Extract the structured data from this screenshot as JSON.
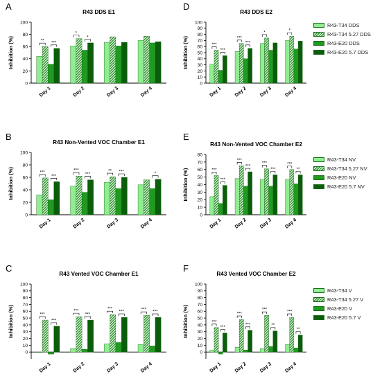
{
  "colors": {
    "s0": "#90ee90",
    "s1": "#2e8b2e",
    "s2": "#1f9b1f",
    "s3": "#0b5d0b",
    "axis": "#000000"
  },
  "chart_data": [
    {
      "panel": "A",
      "type": "bar",
      "title": "R43 DDS E1",
      "ylabel": "Inhibition (%)",
      "xlabel": "",
      "ylim": [
        0,
        100
      ],
      "yticks": [
        0,
        20,
        40,
        60,
        80,
        100
      ],
      "categories": [
        "Day 1",
        "Day 2",
        "Day 3",
        "Day 4"
      ],
      "series": [
        {
          "values": [
            44,
            61,
            67,
            70
          ]
        },
        {
          "values": [
            60,
            73,
            76,
            77
          ]
        },
        {
          "values": [
            31,
            54,
            61,
            66
          ]
        },
        {
          "values": [
            57,
            66,
            67,
            68
          ]
        }
      ],
      "significance": [
        {
          "day": 0,
          "from": 0,
          "to": 1,
          "label": "**"
        },
        {
          "day": 0,
          "from": 2,
          "to": 3,
          "label": "***"
        },
        {
          "day": 1,
          "from": 0,
          "to": 1,
          "label": "*"
        },
        {
          "day": 1,
          "from": 2,
          "to": 3,
          "label": "*"
        }
      ]
    },
    {
      "panel": "D",
      "type": "bar",
      "title": "R43 DDS E2",
      "ylabel": "Inhibition (%)",
      "xlabel": "",
      "ylim": [
        0,
        100
      ],
      "yticks": [
        0,
        10,
        20,
        30,
        40,
        50,
        60,
        70,
        80,
        90,
        100
      ],
      "categories": [
        "Day 1",
        "Day 2",
        "Day 3",
        "Day 4"
      ],
      "series": [
        {
          "name": "R43-T34 DDS",
          "values": [
            31,
            52,
            65,
            70
          ]
        },
        {
          "name": "R43-T34 5.27 DDS",
          "values": [
            54,
            65,
            74,
            77
          ]
        },
        {
          "name": "R43-E20 DDS",
          "values": [
            21,
            40,
            54,
            56
          ]
        },
        {
          "name": "R43-E20 5.7 DDS",
          "values": [
            45,
            57,
            66,
            69
          ]
        }
      ],
      "significance": [
        {
          "day": 0,
          "from": 0,
          "to": 1,
          "label": "***"
        },
        {
          "day": 0,
          "from": 2,
          "to": 3,
          "label": "***"
        },
        {
          "day": 1,
          "from": 0,
          "to": 1,
          "label": "***"
        },
        {
          "day": 1,
          "from": 2,
          "to": 3,
          "label": "***"
        },
        {
          "day": 2,
          "from": 0,
          "to": 1,
          "label": "*"
        },
        {
          "day": 3,
          "from": 0,
          "to": 1,
          "label": "*"
        }
      ]
    },
    {
      "panel": "B",
      "type": "bar",
      "title": "R43 Non-Vented VOC Chamber E1",
      "ylabel": "Inhibition (%)",
      "xlabel": "",
      "ylim": [
        0,
        100
      ],
      "yticks": [
        0,
        20,
        40,
        60,
        80,
        100
      ],
      "categories": [
        "Day 1",
        "Day 2",
        "Day 3",
        "Day 4"
      ],
      "series": [
        {
          "values": [
            32,
            46,
            52,
            48
          ]
        },
        {
          "values": [
            59,
            62,
            61,
            56
          ]
        },
        {
          "values": [
            24,
            36,
            42,
            42
          ]
        },
        {
          "values": [
            53,
            56,
            60,
            57
          ]
        }
      ],
      "significance": [
        {
          "day": 0,
          "from": 0,
          "to": 1,
          "label": "***"
        },
        {
          "day": 0,
          "from": 2,
          "to": 3,
          "label": "***"
        },
        {
          "day": 1,
          "from": 0,
          "to": 1,
          "label": "***"
        },
        {
          "day": 1,
          "from": 2,
          "to": 3,
          "label": "***"
        },
        {
          "day": 2,
          "from": 0,
          "to": 1,
          "label": "**"
        },
        {
          "day": 2,
          "from": 2,
          "to": 3,
          "label": "***"
        },
        {
          "day": 3,
          "from": 2,
          "to": 3,
          "label": "*"
        }
      ]
    },
    {
      "panel": "E",
      "type": "bar",
      "title": "R43 Non-Vented VOC Chamber E2",
      "ylabel": "Inhibition (%)",
      "xlabel": "",
      "ylim": [
        0,
        80
      ],
      "yticks": [
        0,
        10,
        20,
        30,
        40,
        50,
        60,
        70,
        80
      ],
      "categories": [
        "Day 1",
        "Day 2",
        "Day 3",
        "Day 4"
      ],
      "series": [
        {
          "name": "R43-T34 NV",
          "values": [
            24,
            48,
            47,
            47
          ]
        },
        {
          "name": "R43-T34 5.27 NV",
          "values": [
            52,
            65,
            61,
            60
          ]
        },
        {
          "name": "R43-E20 NV",
          "values": [
            15,
            38,
            38,
            41
          ]
        },
        {
          "name": "R43-E20 5.7 NV",
          "values": [
            39,
            57,
            53,
            53
          ]
        }
      ],
      "significance": [
        {
          "day": 0,
          "from": 0,
          "to": 1,
          "label": "***"
        },
        {
          "day": 0,
          "from": 2,
          "to": 3,
          "label": "***"
        },
        {
          "day": 1,
          "from": 0,
          "to": 1,
          "label": "***"
        },
        {
          "day": 1,
          "from": 2,
          "to": 3,
          "label": "***"
        },
        {
          "day": 2,
          "from": 0,
          "to": 1,
          "label": "***"
        },
        {
          "day": 2,
          "from": 2,
          "to": 3,
          "label": "***"
        },
        {
          "day": 3,
          "from": 0,
          "to": 1,
          "label": "***"
        },
        {
          "day": 3,
          "from": 2,
          "to": 3,
          "label": "**"
        }
      ]
    },
    {
      "panel": "C",
      "type": "bar",
      "title": "R43 Vented VOC Chamber E1",
      "ylabel": "Inhibition (%)",
      "xlabel": "",
      "ylim": [
        -10,
        100
      ],
      "yticks": [
        0,
        10,
        20,
        30,
        40,
        50,
        60,
        70,
        80,
        90,
        100
      ],
      "categories": [
        "Day 1",
        "Day 2",
        "Day 3",
        "Day 4"
      ],
      "series": [
        {
          "values": [
            0,
            5,
            12,
            11
          ]
        },
        {
          "values": [
            47,
            52,
            55,
            54
          ]
        },
        {
          "values": [
            -3,
            4,
            14,
            9
          ]
        },
        {
          "values": [
            38,
            47,
            51,
            51
          ]
        }
      ],
      "significance": [
        {
          "day": 0,
          "from": 0,
          "to": 1,
          "label": "***"
        },
        {
          "day": 0,
          "from": 2,
          "to": 3,
          "label": "***"
        },
        {
          "day": 1,
          "from": 0,
          "to": 1,
          "label": "***"
        },
        {
          "day": 1,
          "from": 2,
          "to": 3,
          "label": "***"
        },
        {
          "day": 2,
          "from": 0,
          "to": 1,
          "label": "***"
        },
        {
          "day": 2,
          "from": 2,
          "to": 3,
          "label": "***"
        },
        {
          "day": 3,
          "from": 0,
          "to": 1,
          "label": "***"
        },
        {
          "day": 3,
          "from": 2,
          "to": 3,
          "label": "***"
        }
      ]
    },
    {
      "panel": "F",
      "type": "bar",
      "title": "R43 Vented VOC Chamber E2",
      "ylabel": "Inhibition (%)",
      "xlabel": "",
      "ylim": [
        -10,
        100
      ],
      "yticks": [
        0,
        10,
        20,
        30,
        40,
        50,
        60,
        70,
        80,
        90,
        100
      ],
      "categories": [
        "Day 1",
        "Day 2",
        "Day 3",
        "Day 4"
      ],
      "series": [
        {
          "name": "R43-T34 V",
          "values": [
            3,
            7,
            5,
            11
          ]
        },
        {
          "name": "R43-T34 5.27 V",
          "values": [
            36,
            48,
            54,
            51
          ]
        },
        {
          "name": "R43-E20 V",
          "values": [
            -3,
            3,
            8,
            6
          ]
        },
        {
          "name": "R43-E20 5.7 V",
          "values": [
            28,
            32,
            31,
            25
          ]
        }
      ],
      "significance": [
        {
          "day": 0,
          "from": 0,
          "to": 1,
          "label": "***"
        },
        {
          "day": 0,
          "from": 2,
          "to": 3,
          "label": "***"
        },
        {
          "day": 1,
          "from": 0,
          "to": 1,
          "label": "***"
        },
        {
          "day": 1,
          "from": 2,
          "to": 3,
          "label": "***"
        },
        {
          "day": 2,
          "from": 0,
          "to": 1,
          "label": "***"
        },
        {
          "day": 2,
          "from": 2,
          "to": 3,
          "label": "**"
        },
        {
          "day": 3,
          "from": 0,
          "to": 1,
          "label": "***"
        },
        {
          "day": 3,
          "from": 2,
          "to": 3,
          "label": "**"
        }
      ]
    }
  ]
}
